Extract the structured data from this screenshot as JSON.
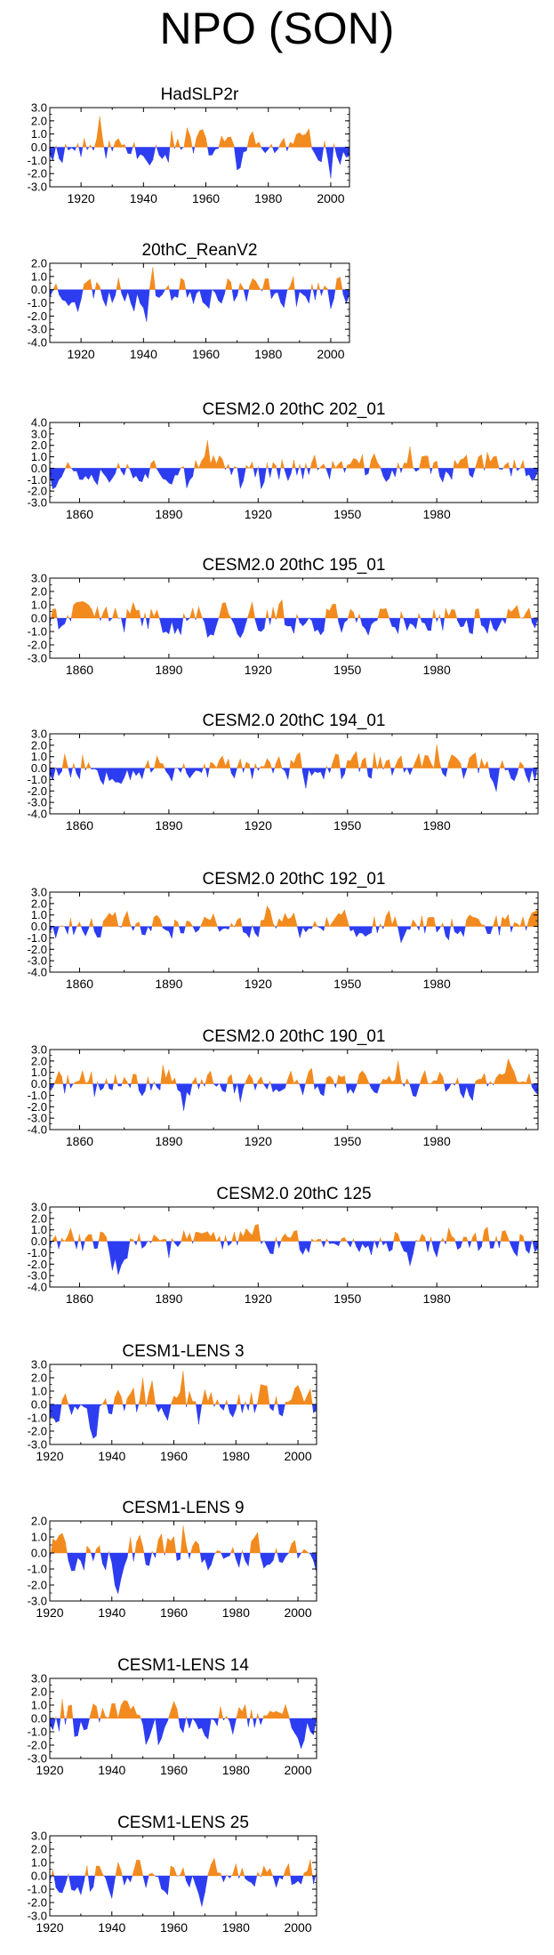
{
  "title": "NPO (SON)",
  "colors": {
    "positive": "#f28a1e",
    "negative": "#2c3cf0",
    "axis": "#000000"
  },
  "chart_data": [
    {
      "type": "area",
      "title": "HadSLP2r",
      "x_start": 1910,
      "x_end": 2006,
      "xlim": [
        1910,
        2006
      ],
      "xticks": [
        1920,
        1940,
        1960,
        1980,
        2000
      ],
      "ylim": [
        -3.0,
        3.0
      ],
      "yticks": [
        "3.0",
        "2.0",
        "1.0",
        "0.0",
        "-1.0",
        "-2.0",
        "-3.0"
      ],
      "seed": 11
    },
    {
      "type": "area",
      "title": "20thC_ReanV2",
      "x_start": 1910,
      "x_end": 2006,
      "xlim": [
        1910,
        2006
      ],
      "xticks": [
        1920,
        1940,
        1960,
        1980,
        2000
      ],
      "ylim": [
        -4.0,
        2.0
      ],
      "yticks": [
        "2.0",
        "1.0",
        "0.0",
        "-1.0",
        "-2.0",
        "-3.0",
        "-4.0"
      ],
      "seed": 23
    },
    {
      "type": "area",
      "title": "CESM2.0 20thC 202_01",
      "x_start": 1850,
      "x_end": 2014,
      "xlim": [
        1850,
        2014
      ],
      "xticks": [
        1860,
        1890,
        1920,
        1950,
        1980
      ],
      "ylim": [
        -3.0,
        4.0
      ],
      "yticks": [
        "4.0",
        "3.0",
        "2.0",
        "1.0",
        "0.0",
        "-1.0",
        "-2.0",
        "-3.0"
      ],
      "seed": 37
    },
    {
      "type": "area",
      "title": "CESM2.0 20thC 195_01",
      "x_start": 1850,
      "x_end": 2014,
      "xlim": [
        1850,
        2014
      ],
      "xticks": [
        1860,
        1890,
        1920,
        1950,
        1980
      ],
      "ylim": [
        -3.0,
        3.0
      ],
      "yticks": [
        "3.0",
        "2.0",
        "1.0",
        "0.0",
        "-1.0",
        "-2.0",
        "-3.0"
      ],
      "seed": 41
    },
    {
      "type": "area",
      "title": "CESM2.0 20thC 194_01",
      "x_start": 1850,
      "x_end": 2014,
      "xlim": [
        1850,
        2014
      ],
      "xticks": [
        1860,
        1890,
        1920,
        1950,
        1980
      ],
      "ylim": [
        -4.0,
        3.0
      ],
      "yticks": [
        "3.0",
        "2.0",
        "1.0",
        "0.0",
        "-1.0",
        "-2.0",
        "-3.0",
        "-4.0"
      ],
      "seed": 53
    },
    {
      "type": "area",
      "title": "CESM2.0 20thC 192_01",
      "x_start": 1850,
      "x_end": 2014,
      "xlim": [
        1850,
        2014
      ],
      "xticks": [
        1860,
        1890,
        1920,
        1950,
        1980
      ],
      "ylim": [
        -4.0,
        3.0
      ],
      "yticks": [
        "3.0",
        "2.0",
        "1.0",
        "0.0",
        "-1.0",
        "-2.0",
        "-3.0",
        "-4.0"
      ],
      "seed": 61
    },
    {
      "type": "area",
      "title": "CESM2.0 20thC 190_01",
      "x_start": 1850,
      "x_end": 2014,
      "xlim": [
        1850,
        2014
      ],
      "xticks": [
        1860,
        1890,
        1920,
        1950,
        1980
      ],
      "ylim": [
        -4.0,
        3.0
      ],
      "yticks": [
        "3.0",
        "2.0",
        "1.0",
        "0.0",
        "-1.0",
        "-2.0",
        "-3.0",
        "-4.0"
      ],
      "seed": 71
    },
    {
      "type": "area",
      "title": "CESM2.0 20thC 125",
      "x_start": 1850,
      "x_end": 2014,
      "xlim": [
        1850,
        2014
      ],
      "xticks": [
        1860,
        1890,
        1920,
        1950,
        1980
      ],
      "ylim": [
        -4.0,
        3.0
      ],
      "yticks": [
        "3.0",
        "2.0",
        "1.0",
        "0.0",
        "-1.0",
        "-2.0",
        "-3.0",
        "-4.0"
      ],
      "seed": 83
    },
    {
      "type": "area",
      "title": "CESM1-LENS 3",
      "x_start": 1920,
      "x_end": 2006,
      "xlim": [
        1920,
        2006
      ],
      "xticks": [
        1920,
        1940,
        1960,
        1980,
        2000
      ],
      "ylim": [
        -3.0,
        3.0
      ],
      "yticks": [
        "3.0",
        "2.0",
        "1.0",
        "0.0",
        "-1.0",
        "-2.0",
        "-3.0"
      ],
      "seed": 97
    },
    {
      "type": "area",
      "title": "CESM1-LENS 9",
      "x_start": 1920,
      "x_end": 2006,
      "xlim": [
        1920,
        2006
      ],
      "xticks": [
        1920,
        1940,
        1960,
        1980,
        2000
      ],
      "ylim": [
        -3.0,
        2.0
      ],
      "yticks": [
        "2.0",
        "1.0",
        "0.0",
        "-1.0",
        "-2.0",
        "-3.0"
      ],
      "seed": 101
    },
    {
      "type": "area",
      "title": "CESM1-LENS 14",
      "x_start": 1920,
      "x_end": 2006,
      "xlim": [
        1920,
        2006
      ],
      "xticks": [
        1920,
        1940,
        1960,
        1980,
        2000
      ],
      "ylim": [
        -3.0,
        3.0
      ],
      "yticks": [
        "3.0",
        "2.0",
        "1.0",
        "0.0",
        "-1.0",
        "-2.0",
        "-3.0"
      ],
      "seed": 113
    },
    {
      "type": "area",
      "title": "CESM1-LENS 25",
      "x_start": 1920,
      "x_end": 2006,
      "xlim": [
        1920,
        2006
      ],
      "xticks": [
        1920,
        1940,
        1960,
        1980,
        2000
      ],
      "ylim": [
        -3.0,
        3.0
      ],
      "yticks": [
        "3.0",
        "2.0",
        "1.0",
        "0.0",
        "-1.0",
        "-2.0",
        "-3.0"
      ],
      "seed": 127
    }
  ]
}
